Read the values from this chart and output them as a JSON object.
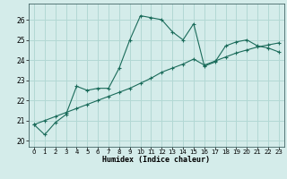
{
  "title": "",
  "xlabel": "Humidex (Indice chaleur)",
  "ylabel": "",
  "xlim": [
    -0.5,
    23.5
  ],
  "ylim": [
    19.7,
    26.8
  ],
  "xticks": [
    0,
    1,
    2,
    3,
    4,
    5,
    6,
    7,
    8,
    9,
    10,
    11,
    12,
    13,
    14,
    15,
    16,
    17,
    18,
    19,
    20,
    21,
    22,
    23
  ],
  "yticks": [
    20,
    21,
    22,
    23,
    24,
    25,
    26
  ],
  "bg_color": "#d4ecea",
  "grid_color": "#b2d8d4",
  "line_color": "#1a6b5a",
  "line1_x": [
    0,
    1,
    2,
    3,
    4,
    5,
    6,
    7,
    8,
    9,
    10,
    11,
    12,
    13,
    14,
    15,
    16,
    17,
    18,
    19,
    20,
    21,
    22,
    23
  ],
  "line1_y": [
    20.8,
    20.3,
    20.9,
    21.3,
    22.7,
    22.5,
    22.6,
    22.6,
    23.6,
    25.0,
    26.2,
    26.1,
    26.0,
    25.4,
    25.0,
    25.8,
    23.7,
    23.9,
    24.7,
    24.9,
    25.0,
    24.7,
    24.6,
    24.4
  ],
  "line2_x": [
    0,
    1,
    2,
    3,
    4,
    5,
    6,
    7,
    8,
    9,
    10,
    11,
    12,
    13,
    14,
    15,
    16,
    17,
    18,
    19,
    20,
    21,
    22,
    23
  ],
  "line2_y": [
    20.8,
    21.0,
    21.2,
    21.4,
    21.6,
    21.8,
    22.0,
    22.2,
    22.4,
    22.6,
    22.85,
    23.1,
    23.4,
    23.6,
    23.8,
    24.05,
    23.75,
    23.95,
    24.15,
    24.35,
    24.5,
    24.65,
    24.75,
    24.85
  ],
  "figsize": [
    3.2,
    2.0
  ],
  "dpi": 100
}
